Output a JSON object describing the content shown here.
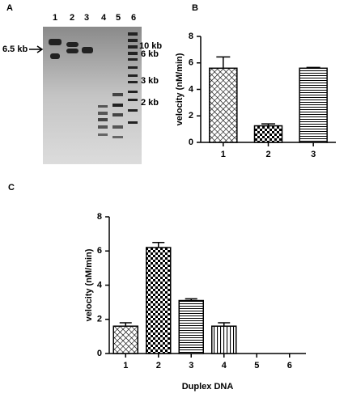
{
  "gel": {
    "panel_label": "A",
    "lanes": [
      "1",
      "2",
      "3",
      "4",
      "5",
      "6"
    ],
    "marker": "6.5 kb",
    "ladder": [
      "10 kb",
      "6 kb",
      "3 kb",
      "2 kb"
    ]
  },
  "chart_data": [
    {
      "type": "bar",
      "panel_label": "B",
      "y_label": "velocity (nM/min)",
      "categories": [
        "1",
        "2",
        "3"
      ],
      "values": [
        5.6,
        1.25,
        5.6
      ],
      "errors": [
        0.85,
        0.15,
        0.06
      ],
      "patterns": [
        "crosshatch",
        "checker",
        "hlines"
      ],
      "color": "#000000",
      "ylim": [
        0,
        8
      ],
      "yticks": [
        0,
        2,
        4,
        6,
        8
      ]
    },
    {
      "type": "bar",
      "panel_label": "C",
      "y_label": "velocity (nM/min)",
      "x_label": "Duplex DNA",
      "categories": [
        "1",
        "2",
        "3",
        "4",
        "5",
        "6"
      ],
      "values": [
        1.6,
        6.2,
        3.1,
        1.6,
        0,
        0
      ],
      "errors": [
        0.2,
        0.3,
        0.1,
        0.2,
        null,
        null
      ],
      "patterns": [
        "crosshatch",
        "checker",
        "hlines",
        "vlines",
        "crosshatch",
        "crosshatch"
      ],
      "color": "#000000",
      "ylim": [
        0,
        8
      ],
      "yticks": [
        0,
        2,
        4,
        6,
        8
      ]
    }
  ]
}
